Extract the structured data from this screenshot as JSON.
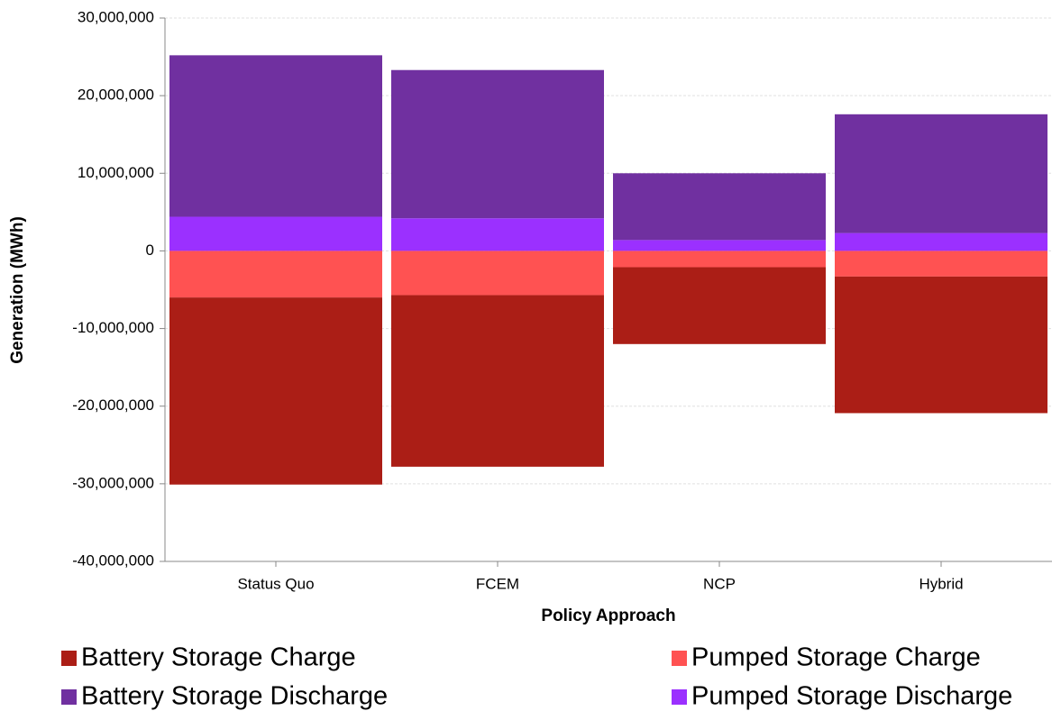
{
  "chart_data": {
    "type": "bar",
    "stacked": true,
    "x_label": "Policy Approach",
    "y_label": "Generation (MWh)",
    "categories": [
      "Status Quo",
      "FCEM",
      "NCP",
      "Hybrid"
    ],
    "series": [
      {
        "name": "Battery Storage Charge",
        "color": "#ab1e16",
        "values": [
          -24100000,
          -22100000,
          -9900000,
          -17600000
        ]
      },
      {
        "name": "Pumped Storage Charge",
        "color": "#ff5252",
        "values": [
          -6000000,
          -5700000,
          -2100000,
          -3300000
        ]
      },
      {
        "name": "Battery Storage Discharge",
        "color": "#7030a0",
        "values": [
          20800000,
          19100000,
          8600000,
          15300000
        ]
      },
      {
        "name": "Pumped Storage Discharge",
        "color": "#9b30ff",
        "values": [
          4400000,
          4200000,
          1400000,
          2300000
        ]
      }
    ],
    "ylim": [
      -40000000,
      30000000
    ],
    "yticks": [
      {
        "value": -40000000,
        "label": "-40,000,000"
      },
      {
        "value": -30000000,
        "label": "-30,000,000"
      },
      {
        "value": -20000000,
        "label": "-20,000,000"
      },
      {
        "value": -10000000,
        "label": "-10,000,000"
      },
      0,
      {
        "value": 10000000,
        "label": "10,000,000"
      },
      {
        "value": 20000000,
        "label": "20,000,000"
      },
      {
        "value": 30000000,
        "label": "30,000,000"
      }
    ],
    "grid": true
  }
}
